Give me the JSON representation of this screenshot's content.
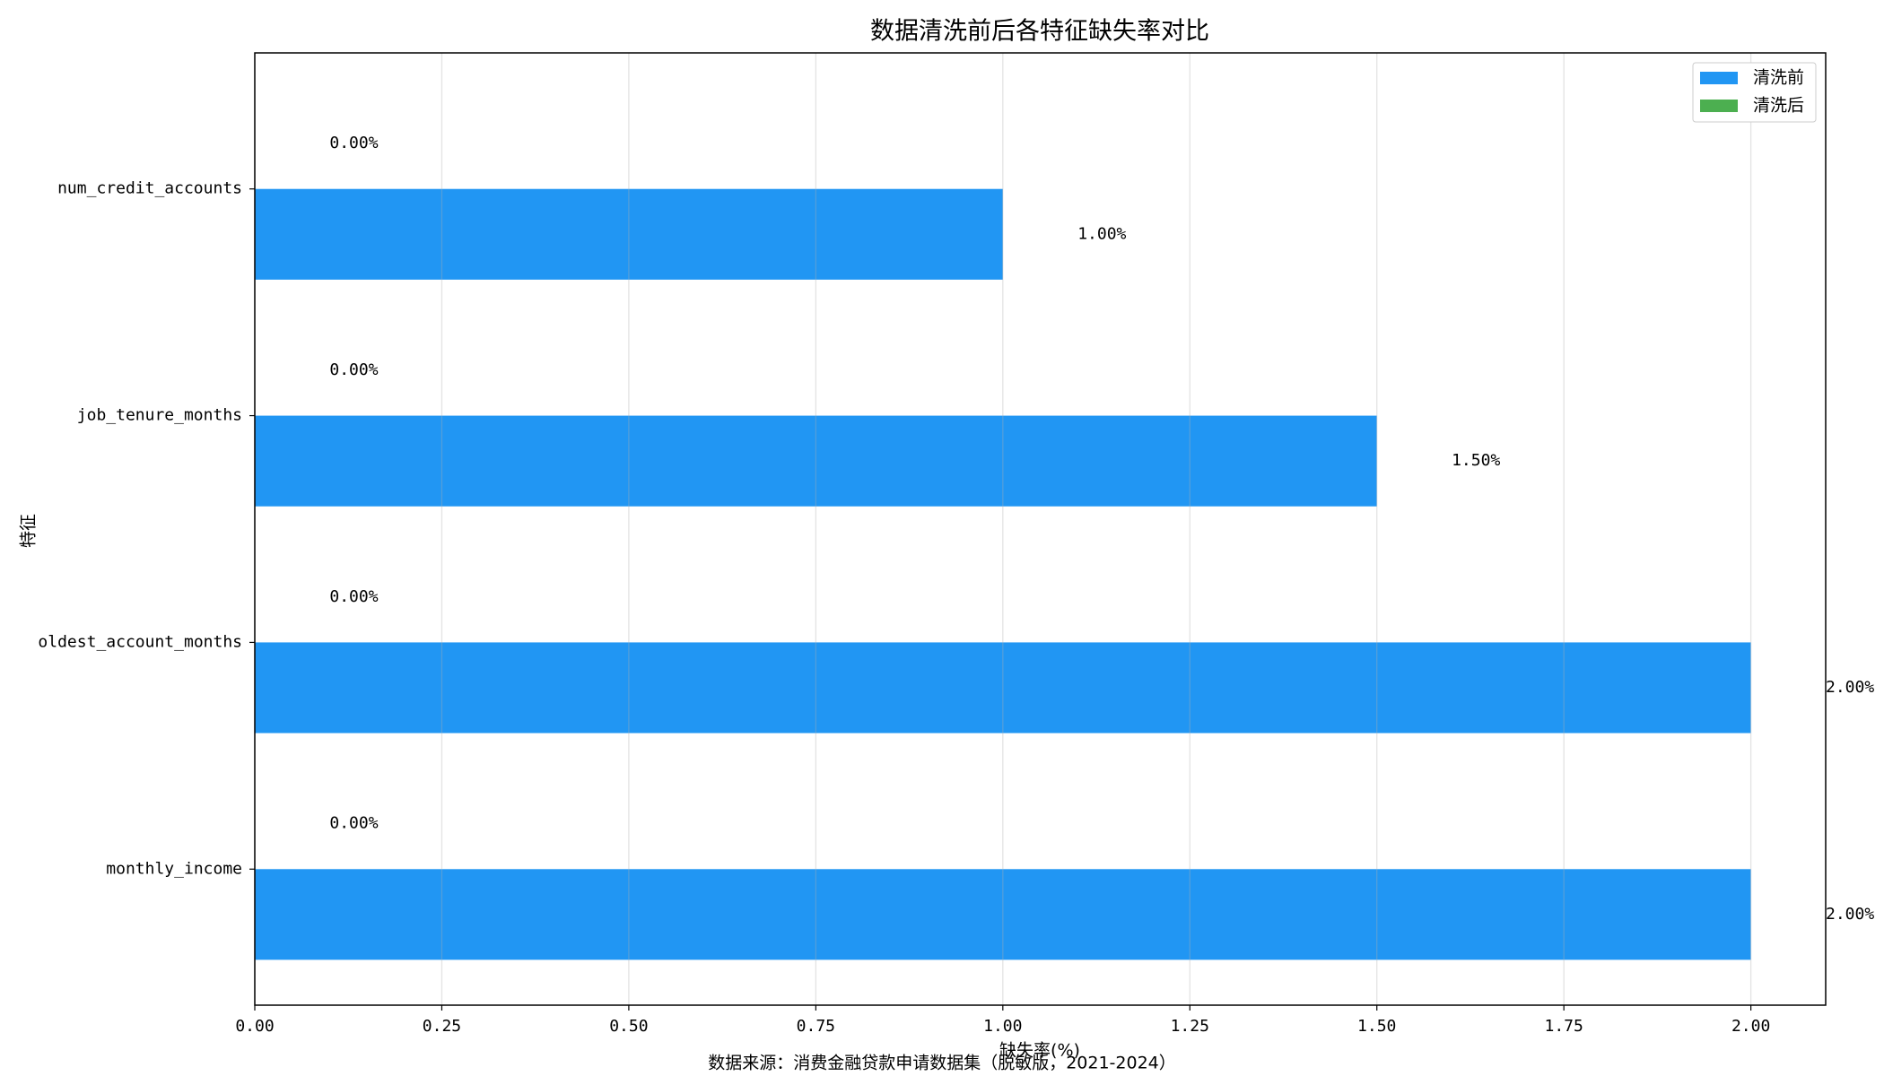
{
  "chart_data": {
    "type": "barh",
    "title": "数据清洗前后各特征缺失率对比",
    "xlabel": "缺失率(%)",
    "ylabel": "特征",
    "footnote": "数据来源：消费金融贷款申请数据集（脱敏版，2021-2024）",
    "categories": [
      "monthly_income",
      "oldest_account_months",
      "job_tenure_months",
      "num_credit_accounts"
    ],
    "series": [
      {
        "name": "清洗前",
        "color": "#2196f3",
        "values": [
          2,
          2,
          1.5,
          1
        ],
        "value_labels": [
          "2.00%",
          "2.00%",
          "1.50%",
          "1.00%"
        ]
      },
      {
        "name": "清洗后",
        "color": "#4caf50",
        "values": [
          0,
          0,
          0,
          0
        ],
        "value_labels": [
          "0.00%",
          "0.00%",
          "0.00%",
          "0.00%"
        ]
      }
    ],
    "xlim": [
      0,
      2.1
    ],
    "xticks": [
      {
        "value": 0,
        "label": "0.00"
      },
      0.25,
      {
        "value": 0.5,
        "label": "0.50"
      },
      0.75,
      {
        "value": 1,
        "label": "1.00"
      },
      1.25,
      {
        "value": 1.5,
        "label": "1.50"
      },
      1.75,
      {
        "value": 2,
        "label": "2.00"
      }
    ],
    "grid": true,
    "legend": "upper right"
  }
}
